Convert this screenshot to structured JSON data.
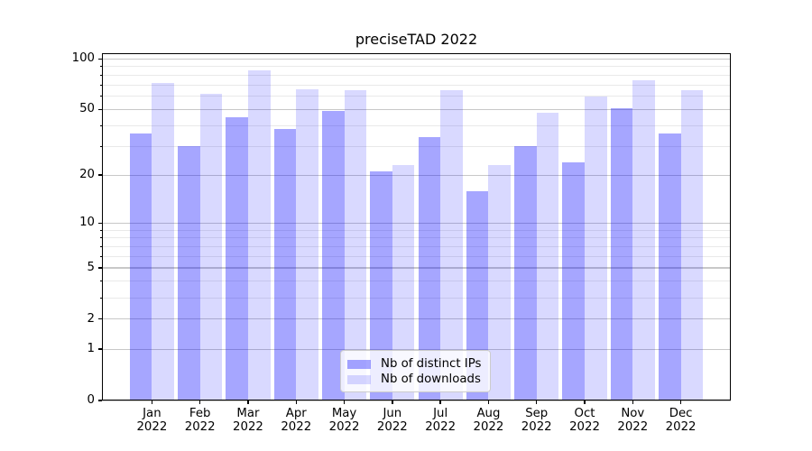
{
  "title": "preciseTAD 2022",
  "chart_data": {
    "type": "bar",
    "title": "preciseTAD 2022",
    "categories": [
      "Jan",
      "Feb",
      "Mar",
      "Apr",
      "May",
      "Jun",
      "Jul",
      "Aug",
      "Sep",
      "Oct",
      "Nov",
      "Dec"
    ],
    "category_year": "2022",
    "series": [
      {
        "name": "Nb of distinct IPs",
        "color": "rgba(0,0,255,0.35)",
        "values": [
          36,
          30,
          45,
          38,
          49,
          21,
          34,
          16,
          30,
          24,
          51,
          36
        ]
      },
      {
        "name": "Nb of downloads",
        "color": "rgba(0,0,255,0.15)",
        "values": [
          72,
          62,
          85,
          66,
          65,
          23,
          65,
          23,
          48,
          60,
          75,
          65
        ]
      }
    ],
    "xlabel": "",
    "ylabel": "",
    "y_scale": "log1p",
    "y_ticks": [
      0,
      1,
      2,
      5,
      10,
      20,
      50,
      100
    ],
    "y_minor_gridlines": [
      3,
      4,
      6,
      7,
      8,
      9,
      30,
      40,
      60,
      70,
      80,
      90
    ],
    "ylim": [
      0,
      108
    ],
    "grid": true,
    "legend_position": "lower center"
  },
  "colors": {
    "bar_distinct_ips": "rgba(0,0,255,0.35)",
    "bar_downloads": "rgba(0,0,255,0.15)",
    "grid_major": "#c8c8c8",
    "grid_minor": "#e9e9e9",
    "axis": "#000000",
    "text": "#000000",
    "legend_border": "#cccccc"
  }
}
